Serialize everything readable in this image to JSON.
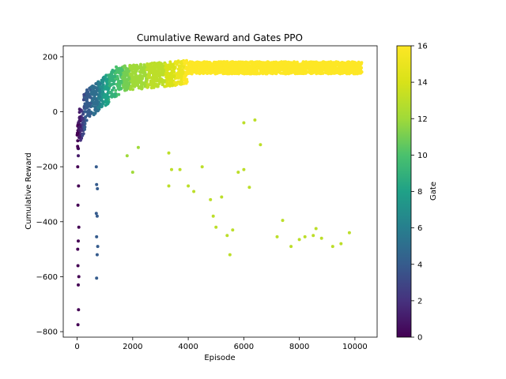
{
  "chart_data": {
    "type": "scatter",
    "title": "Cumulative Reward and Gates PPO",
    "xlabel": "Episode",
    "ylabel": "Cumulative Reward",
    "xlim": [
      -500,
      10800
    ],
    "ylim": [
      -820,
      240
    ],
    "xticks": [
      0,
      2000,
      4000,
      6000,
      8000,
      10000
    ],
    "yticks": [
      -800,
      -600,
      -400,
      -200,
      0,
      200
    ],
    "grid": false,
    "colorbar": {
      "label": "Gate",
      "colormap": "viridis",
      "range": [
        0,
        16
      ],
      "ticks": [
        0,
        2,
        4,
        6,
        8,
        10,
        12,
        14,
        16
      ]
    },
    "series": [
      {
        "description": "points colored by gate value",
        "gate_stops": [
          {
            "episode": 0,
            "gate": 0
          },
          {
            "episode": 150,
            "gate": 2
          },
          {
            "episode": 300,
            "gate": 4
          },
          {
            "episode": 700,
            "gate": 5
          },
          {
            "episode": 1000,
            "gate": 8
          },
          {
            "episode": 1500,
            "gate": 10
          },
          {
            "episode": 2000,
            "gate": 12
          },
          {
            "episode": 3000,
            "gate": 13
          },
          {
            "episode": 4000,
            "gate": 16
          },
          {
            "episode": 10200,
            "gate": 16
          }
        ]
      }
    ],
    "outliers": [
      {
        "x": 30,
        "y": -775,
        "gate": 0
      },
      {
        "x": 50,
        "y": -720,
        "gate": 0
      },
      {
        "x": 40,
        "y": -630,
        "gate": 0
      },
      {
        "x": 60,
        "y": -600,
        "gate": 0
      },
      {
        "x": 30,
        "y": -560,
        "gate": 0
      },
      {
        "x": 20,
        "y": -500,
        "gate": 0
      },
      {
        "x": 40,
        "y": -470,
        "gate": 0
      },
      {
        "x": 60,
        "y": -420,
        "gate": 0
      },
      {
        "x": 30,
        "y": -340,
        "gate": 0
      },
      {
        "x": 50,
        "y": -270,
        "gate": 0
      },
      {
        "x": 20,
        "y": -200,
        "gate": 0
      },
      {
        "x": 40,
        "y": -160,
        "gate": 1
      },
      {
        "x": 700,
        "y": -605,
        "gate": 4
      },
      {
        "x": 720,
        "y": -520,
        "gate": 4
      },
      {
        "x": 740,
        "y": -490,
        "gate": 4
      },
      {
        "x": 700,
        "y": -455,
        "gate": 4
      },
      {
        "x": 720,
        "y": -380,
        "gate": 4
      },
      {
        "x": 690,
        "y": -370,
        "gate": 4
      },
      {
        "x": 730,
        "y": -280,
        "gate": 4
      },
      {
        "x": 700,
        "y": -265,
        "gate": 4
      },
      {
        "x": 690,
        "y": -200,
        "gate": 4
      },
      {
        "x": 2000,
        "y": -220,
        "gate": 12
      },
      {
        "x": 1800,
        "y": -160,
        "gate": 12
      },
      {
        "x": 2200,
        "y": -130,
        "gate": 12
      },
      {
        "x": 3300,
        "y": -270,
        "gate": 13
      },
      {
        "x": 3400,
        "y": -210,
        "gate": 13
      },
      {
        "x": 3700,
        "y": -210,
        "gate": 13
      },
      {
        "x": 3300,
        "y": -150,
        "gate": 13
      },
      {
        "x": 4000,
        "y": -270,
        "gate": 13
      },
      {
        "x": 4200,
        "y": -290,
        "gate": 13
      },
      {
        "x": 4500,
        "y": -200,
        "gate": 13
      },
      {
        "x": 4800,
        "y": -320,
        "gate": 13
      },
      {
        "x": 4900,
        "y": -380,
        "gate": 13
      },
      {
        "x": 5000,
        "y": -420,
        "gate": 13
      },
      {
        "x": 5200,
        "y": -310,
        "gate": 13
      },
      {
        "x": 5400,
        "y": -450,
        "gate": 13
      },
      {
        "x": 5500,
        "y": -520,
        "gate": 13
      },
      {
        "x": 5600,
        "y": -430,
        "gate": 13
      },
      {
        "x": 5800,
        "y": -220,
        "gate": 13
      },
      {
        "x": 6000,
        "y": -210,
        "gate": 13
      },
      {
        "x": 6200,
        "y": -275,
        "gate": 13
      },
      {
        "x": 6000,
        "y": -40,
        "gate": 13
      },
      {
        "x": 6400,
        "y": -30,
        "gate": 13
      },
      {
        "x": 6600,
        "y": -120,
        "gate": 13
      },
      {
        "x": 7200,
        "y": -455,
        "gate": 13
      },
      {
        "x": 7400,
        "y": -395,
        "gate": 13
      },
      {
        "x": 7700,
        "y": -490,
        "gate": 13
      },
      {
        "x": 8000,
        "y": -465,
        "gate": 13
      },
      {
        "x": 8200,
        "y": -455,
        "gate": 13
      },
      {
        "x": 8500,
        "y": -450,
        "gate": 13
      },
      {
        "x": 8600,
        "y": -425,
        "gate": 13
      },
      {
        "x": 8800,
        "y": -460,
        "gate": 13
      },
      {
        "x": 9200,
        "y": -490,
        "gate": 13
      },
      {
        "x": 9500,
        "y": -480,
        "gate": 13
      },
      {
        "x": 9800,
        "y": -440,
        "gate": 13
      }
    ]
  }
}
